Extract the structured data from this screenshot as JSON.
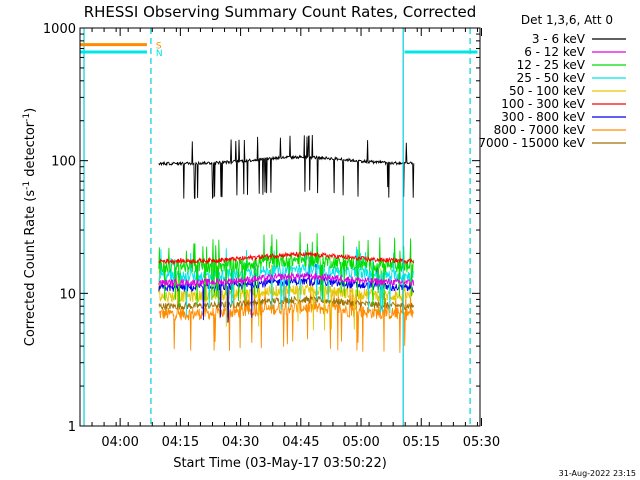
{
  "chart_data": {
    "type": "line",
    "title": "RHESSI Observing Summary Count Rates, Corrected",
    "xlabel": "Start Time (03-May-17 03:50:22)",
    "ylabel_main": "Corrected Count Rate (s",
    "ylabel_sup1": "-1",
    "ylabel_mid": " detector",
    "ylabel_sup2": "-1",
    "ylabel_end": ")",
    "y_scale": "log",
    "ylim": [
      1,
      1000
    ],
    "xlim": [
      "03:50:22",
      "05:30:00"
    ],
    "y_ticks": [
      {
        "label": "1",
        "value": 1
      },
      {
        "label": "10",
        "value": 10
      },
      {
        "label": "100",
        "value": 100
      },
      {
        "label": "1000",
        "value": 1000
      }
    ],
    "x_ticks": [
      {
        "label": "04:00",
        "value": 600
      },
      {
        "label": "04:15",
        "value": 1500
      },
      {
        "label": "04:30",
        "value": 2400
      },
      {
        "label": "04:45",
        "value": 3300
      },
      {
        "label": "05:00",
        "value": 4200
      },
      {
        "label": "05:15",
        "value": 5100
      },
      {
        "label": "05:30",
        "value": 6000
      }
    ],
    "legend_header": "Det 1,3,6, Att 0",
    "legend_position": "top-right",
    "series": [
      {
        "name": "3 - 6 keV",
        "color": "#000000",
        "level": 95,
        "jitter": 0.025,
        "extra": 0.08
      },
      {
        "name": "6 - 12 keV",
        "color": "#e000e0",
        "level": 12,
        "jitter": 0.06,
        "extra": 0
      },
      {
        "name": "12 - 25 keV",
        "color": "#00dd00",
        "level": 16,
        "jitter": 0.12,
        "extra": 0.12
      },
      {
        "name": "25 - 50 keV",
        "color": "#00e5e5",
        "level": 13.5,
        "jitter": 0.1,
        "extra": 0.06
      },
      {
        "name": "50 - 100 keV",
        "color": "#e5c800",
        "level": 9.5,
        "jitter": 0.1,
        "extra": 0.05
      },
      {
        "name": "100 - 300 keV",
        "color": "#ff0000",
        "level": 17.5,
        "jitter": 0.04,
        "extra": 0
      },
      {
        "name": "300 - 800 keV",
        "color": "#0000ee",
        "level": 11,
        "jitter": 0.07,
        "extra": 0.02
      },
      {
        "name": "800 - 7000 keV",
        "color": "#ff8c00",
        "level": 7,
        "jitter": 0.11,
        "extra": 0.08
      },
      {
        "name": "7000 - 15000 keV",
        "color": "#a07000",
        "level": 8,
        "jitter": 0.06,
        "extra": 0
      }
    ],
    "data_time_range": [
      "04:10:00",
      "05:13:30"
    ],
    "event_markers": [
      {
        "flag": "S",
        "color": "#ff8c00",
        "value": 750,
        "start": 0,
        "end": 1060
      },
      {
        "flag": "N",
        "color": "#00e5e5",
        "value": 660,
        "start": 0,
        "end": 1060
      },
      {
        "flag": "",
        "color": "#00e5e5",
        "value": 660,
        "start": 4850,
        "end": 6000
      }
    ],
    "night_boundaries": [
      {
        "value": 60,
        "style": "solid"
      },
      {
        "value": 1060,
        "style": "dashed"
      },
      {
        "value": 4830,
        "style": "solid"
      },
      {
        "value": 5830,
        "style": "dashed"
      }
    ],
    "grid": false
  },
  "footer": {
    "date_stamp": "31-Aug-2022 23:15"
  }
}
